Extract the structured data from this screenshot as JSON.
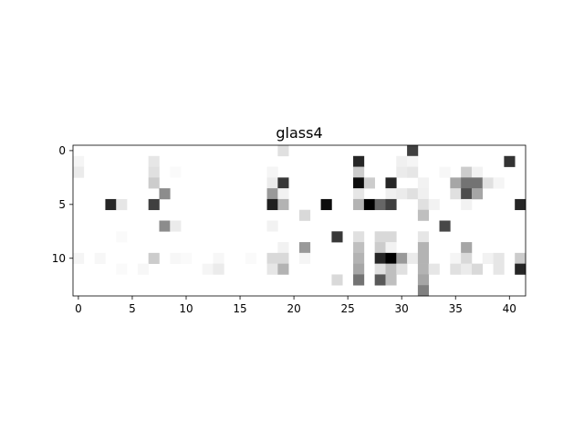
{
  "chart_data": {
    "type": "heatmap",
    "title": "glass4",
    "xlabel": "",
    "ylabel": "",
    "xlim": [
      -0.5,
      41.5
    ],
    "ylim": [
      13.5,
      -0.5
    ],
    "x_ticks": [
      0,
      5,
      10,
      15,
      20,
      25,
      30,
      35,
      40
    ],
    "y_ticks": [
      0,
      5,
      10
    ],
    "colormap": "Greys",
    "vmin": 0,
    "vmax": 1,
    "grid": false,
    "rows": 14,
    "cols": 42,
    "cells": [
      [
        19,
        0,
        0.12
      ],
      [
        31,
        0,
        0.75
      ],
      [
        0,
        1,
        0.04
      ],
      [
        7,
        1,
        0.1
      ],
      [
        26,
        1,
        0.85
      ],
      [
        30,
        1,
        0.06
      ],
      [
        31,
        1,
        0.04
      ],
      [
        40,
        1,
        0.8
      ],
      [
        0,
        2,
        0.08
      ],
      [
        7,
        2,
        0.12
      ],
      [
        9,
        2,
        0.02
      ],
      [
        18,
        2,
        0.04
      ],
      [
        26,
        2,
        0.2
      ],
      [
        30,
        2,
        0.08
      ],
      [
        31,
        2,
        0.1
      ],
      [
        34,
        2,
        0.03
      ],
      [
        36,
        2,
        0.2
      ],
      [
        37,
        2,
        0.05
      ],
      [
        7,
        3,
        0.2
      ],
      [
        18,
        3,
        0.08
      ],
      [
        19,
        3,
        0.78
      ],
      [
        26,
        3,
        0.95
      ],
      [
        27,
        3,
        0.2
      ],
      [
        29,
        3,
        0.85
      ],
      [
        32,
        3,
        0.05
      ],
      [
        35,
        3,
        0.35
      ],
      [
        36,
        3,
        0.55
      ],
      [
        37,
        3,
        0.55
      ],
      [
        38,
        3,
        0.12
      ],
      [
        39,
        3,
        0.04
      ],
      [
        8,
        4,
        0.45
      ],
      [
        18,
        4,
        0.4
      ],
      [
        19,
        4,
        0.05
      ],
      [
        26,
        4,
        0.1
      ],
      [
        29,
        4,
        0.06
      ],
      [
        30,
        4,
        0.08
      ],
      [
        31,
        4,
        0.12
      ],
      [
        32,
        4,
        0.06
      ],
      [
        35,
        4,
        0.12
      ],
      [
        36,
        4,
        0.7
      ],
      [
        37,
        4,
        0.35
      ],
      [
        3,
        5,
        0.85
      ],
      [
        4,
        5,
        0.1
      ],
      [
        7,
        5,
        0.75
      ],
      [
        18,
        5,
        0.88
      ],
      [
        19,
        5,
        0.3
      ],
      [
        23,
        5,
        0.95
      ],
      [
        26,
        5,
        0.3
      ],
      [
        27,
        5,
        1.0
      ],
      [
        28,
        5,
        0.6
      ],
      [
        29,
        5,
        0.75
      ],
      [
        32,
        5,
        0.12
      ],
      [
        33,
        5,
        0.05
      ],
      [
        36,
        5,
        0.05
      ],
      [
        41,
        5,
        0.85
      ],
      [
        21,
        6,
        0.15
      ],
      [
        32,
        6,
        0.25
      ],
      [
        8,
        7,
        0.45
      ],
      [
        9,
        7,
        0.08
      ],
      [
        18,
        7,
        0.05
      ],
      [
        34,
        7,
        0.72
      ],
      [
        4,
        8,
        0.02
      ],
      [
        24,
        8,
        0.78
      ],
      [
        26,
        8,
        0.12
      ],
      [
        28,
        8,
        0.15
      ],
      [
        29,
        8,
        0.15
      ],
      [
        32,
        8,
        0.1
      ],
      [
        19,
        9,
        0.05
      ],
      [
        21,
        9,
        0.4
      ],
      [
        26,
        9,
        0.25
      ],
      [
        28,
        9,
        0.2
      ],
      [
        29,
        9,
        0.05
      ],
      [
        32,
        9,
        0.3
      ],
      [
        36,
        9,
        0.35
      ],
      [
        0,
        10,
        0.04
      ],
      [
        2,
        10,
        0.03
      ],
      [
        7,
        10,
        0.2
      ],
      [
        9,
        10,
        0.03
      ],
      [
        10,
        10,
        0.02
      ],
      [
        13,
        10,
        0.03
      ],
      [
        16,
        10,
        0.02
      ],
      [
        18,
        10,
        0.15
      ],
      [
        19,
        10,
        0.15
      ],
      [
        21,
        10,
        0.04
      ],
      [
        26,
        10,
        0.3
      ],
      [
        28,
        10,
        0.85
      ],
      [
        29,
        10,
        1.0
      ],
      [
        30,
        10,
        0.4
      ],
      [
        31,
        10,
        0.08
      ],
      [
        32,
        10,
        0.3
      ],
      [
        35,
        10,
        0.04
      ],
      [
        36,
        10,
        0.15
      ],
      [
        38,
        10,
        0.05
      ],
      [
        39,
        10,
        0.1
      ],
      [
        41,
        10,
        0.2
      ],
      [
        4,
        11,
        0.02
      ],
      [
        6,
        11,
        0.03
      ],
      [
        12,
        11,
        0.04
      ],
      [
        13,
        11,
        0.08
      ],
      [
        18,
        11,
        0.1
      ],
      [
        19,
        11,
        0.3
      ],
      [
        26,
        11,
        0.35
      ],
      [
        28,
        11,
        0.12
      ],
      [
        29,
        11,
        0.25
      ],
      [
        30,
        11,
        0.12
      ],
      [
        32,
        11,
        0.3
      ],
      [
        33,
        11,
        0.1
      ],
      [
        35,
        11,
        0.12
      ],
      [
        36,
        11,
        0.08
      ],
      [
        37,
        11,
        0.15
      ],
      [
        39,
        11,
        0.1
      ],
      [
        41,
        11,
        0.85
      ],
      [
        24,
        12,
        0.15
      ],
      [
        26,
        12,
        0.55
      ],
      [
        28,
        12,
        0.65
      ],
      [
        29,
        12,
        0.25
      ],
      [
        32,
        12,
        0.35
      ],
      [
        32,
        13,
        0.5
      ]
    ]
  }
}
